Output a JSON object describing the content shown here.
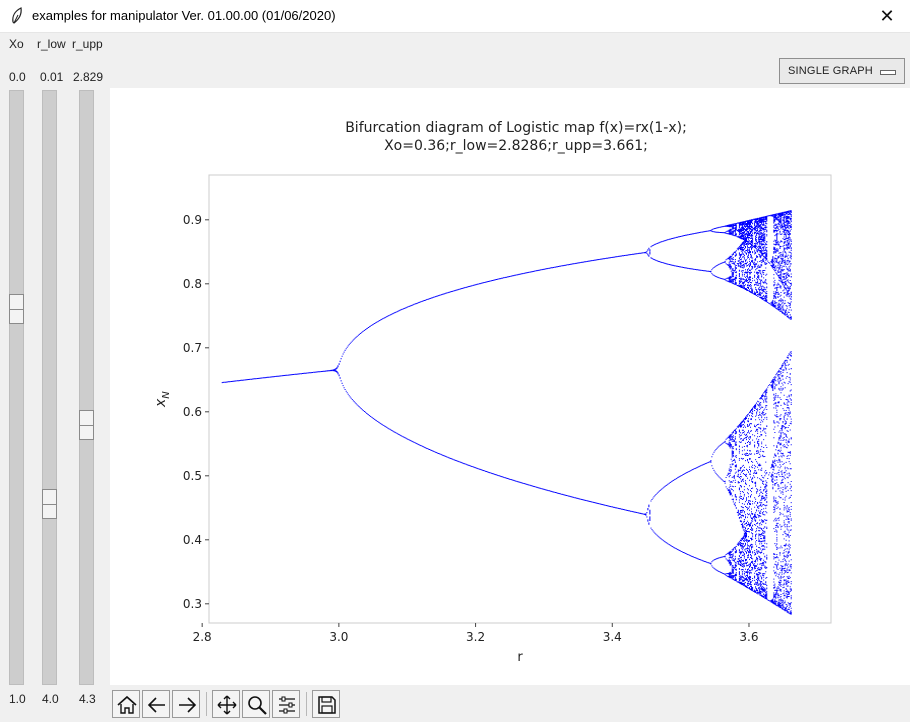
{
  "window": {
    "title": "examples for manipulator Ver. 01.00.00 (01/06/2020)",
    "icons": {
      "app": "feather-icon",
      "close": "close-icon"
    },
    "close_glyph": "✕"
  },
  "sliders": [
    {
      "name": "Xo",
      "top_value": "0.0",
      "bottom_value": "1.0",
      "position": 0.36
    },
    {
      "name": "r_low",
      "top_value": "0.01",
      "bottom_value": "4.0",
      "position": 0.707
    },
    {
      "name": "r_upp",
      "top_value": "2.829",
      "bottom_value": "4.3",
      "position": 0.566
    }
  ],
  "mode_button": {
    "label": "SINGLE GRAPH"
  },
  "toolbar": {
    "buttons": [
      "home-icon",
      "back-arrow-icon",
      "forward-arrow-icon",
      "pan-icon",
      "zoom-icon",
      "configure-subplots-icon",
      "save-icon"
    ]
  },
  "chart_data": {
    "type": "scatter",
    "title": "Bifurcation diagram of Logistic map f(x)=rx(1-x);",
    "subtitle": "Xo=0.36;r_low=2.8286;r_upp=3.661;",
    "xlabel": "r",
    "ylabel": "x",
    "ylabel_subscript": "N",
    "xlim": [
      2.81,
      3.72
    ],
    "ylim": [
      0.27,
      0.97
    ],
    "xticks": [
      "2.8",
      "3.0",
      "3.2",
      "3.4",
      "3.6"
    ],
    "yticks": [
      "0.3",
      "0.4",
      "0.5",
      "0.6",
      "0.7",
      "0.8",
      "0.9"
    ],
    "point_color": "#0000ff",
    "map": {
      "r_start": 2.8286,
      "r_end": 3.661,
      "x0": 0.36
    },
    "grid": false,
    "legend": "none"
  }
}
